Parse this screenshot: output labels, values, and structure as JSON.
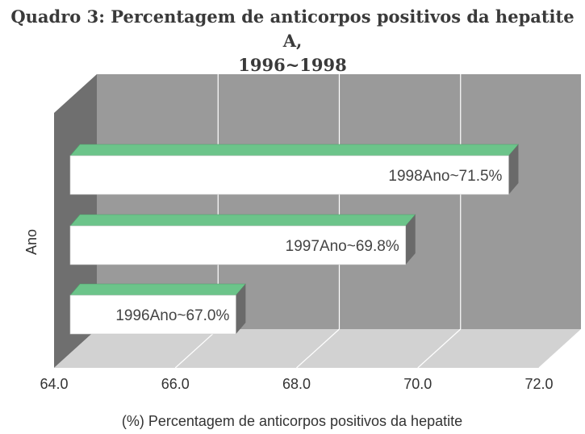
{
  "title": {
    "line1": "Quadro 3: Percentagem de anticorpos positivos da hepatite A,",
    "line2": "1996~1998"
  },
  "chart_data": {
    "type": "bar",
    "orientation": "horizontal",
    "three_d": true,
    "categories": [
      "1996Ano",
      "1997Ano",
      "1998Ano"
    ],
    "values": [
      67.0,
      69.8,
      71.5
    ],
    "data_labels": [
      "1996Ano~67.0%",
      "1997Ano~69.8%",
      "1998Ano~71.5%"
    ],
    "xlabel": "(%) Percentagem de anticorpos positivos da hepatite",
    "ylabel": "Ano",
    "xlim": [
      64.0,
      72.0
    ],
    "xticks": [
      "64.0",
      "66.0",
      "68.0",
      "70.0",
      "72.0"
    ],
    "grid": true,
    "colors": {
      "back_wall": "#9a9a9a",
      "side_wall": "#6f6f6f",
      "floor": "#d2d2d2",
      "bar_front": "#ffffff",
      "bar_top": "#6cc48a",
      "bar_side": "#6a6a6a",
      "gridline": "#ffffff"
    }
  }
}
